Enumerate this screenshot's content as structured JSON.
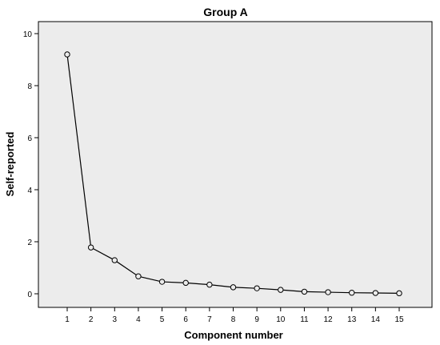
{
  "chart_data": {
    "type": "line",
    "title": "Group A",
    "xlabel": "Component number",
    "ylabel": "Self-reported",
    "x": [
      1,
      2,
      3,
      4,
      5,
      6,
      7,
      8,
      9,
      10,
      11,
      12,
      13,
      14,
      15
    ],
    "series": [
      {
        "values": [
          9.2,
          1.78,
          1.29,
          0.67,
          0.46,
          0.42,
          0.35,
          0.25,
          0.21,
          0.15,
          0.08,
          0.06,
          0.04,
          0.03,
          0.02
        ]
      }
    ],
    "ylim": [
      0,
      10
    ],
    "yticks": [
      0,
      2,
      4,
      6,
      8,
      10
    ],
    "xticks": [
      1,
      2,
      3,
      4,
      5,
      6,
      7,
      8,
      9,
      10,
      11,
      12,
      13,
      14,
      15
    ],
    "grid": false,
    "legend": "none",
    "colors": {
      "plot_background": "#ececec",
      "line": "#000000",
      "marker_fill": "#ececec"
    }
  }
}
